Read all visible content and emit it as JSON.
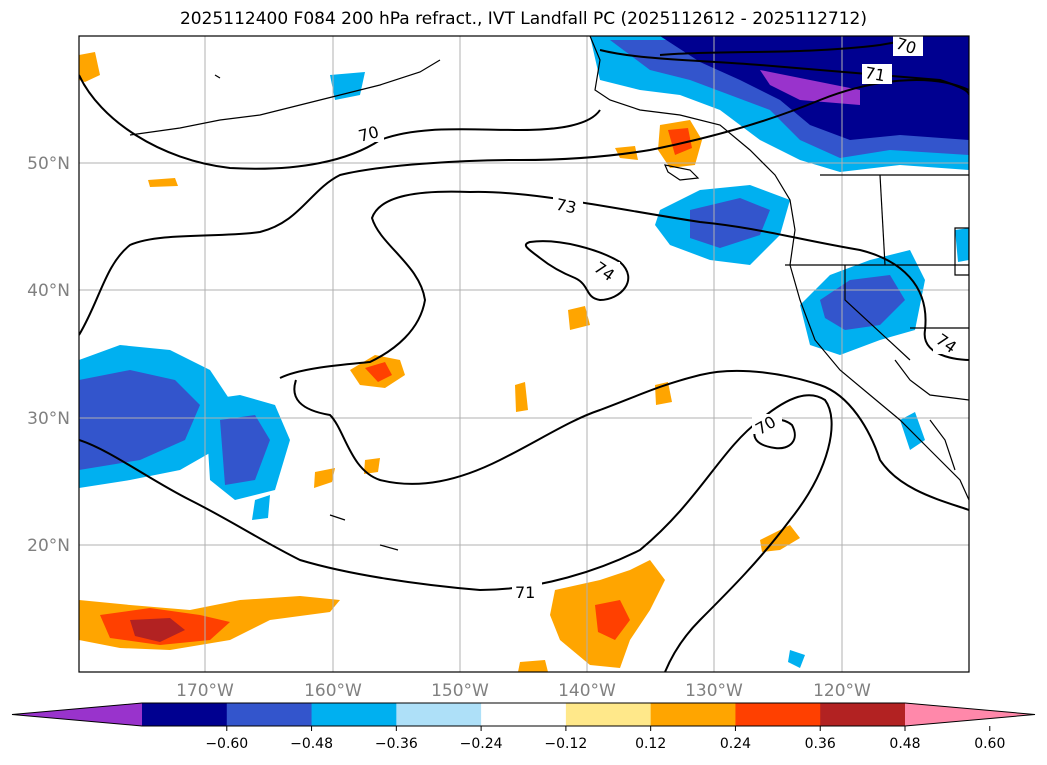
{
  "title": "2025112400 F084 200 hPa refract., IVT Landfall PC (2025112612 - 2025112712)",
  "longitude_labels": [
    "170°W",
    "160°W",
    "150°W",
    "140°W",
    "130°W",
    "120°W"
  ],
  "latitude_labels": [
    "50°N",
    "40°N",
    "30°N",
    "20°N"
  ],
  "contour_labels": [
    "70",
    "71",
    "73",
    "74",
    "71",
    "70",
    "70",
    "74"
  ],
  "colorbar": {
    "tick_labels": [
      "−0.60",
      "−0.48",
      "−0.36",
      "−0.24",
      "−0.12",
      "0.12",
      "0.24",
      "0.36",
      "0.48",
      "0.60"
    ],
    "colors": [
      "#9933cc",
      "#000090",
      "#3355cc",
      "#00b0f0",
      "#aee0f8",
      "#ffffff",
      "#ffe88a",
      "#ffa500",
      "#ff4000",
      "#b22222",
      "#ff88aa"
    ]
  },
  "map_colors": {
    "land_outline": "#000000",
    "grid": "#b0b0b0",
    "label_gray": "#808080"
  }
}
